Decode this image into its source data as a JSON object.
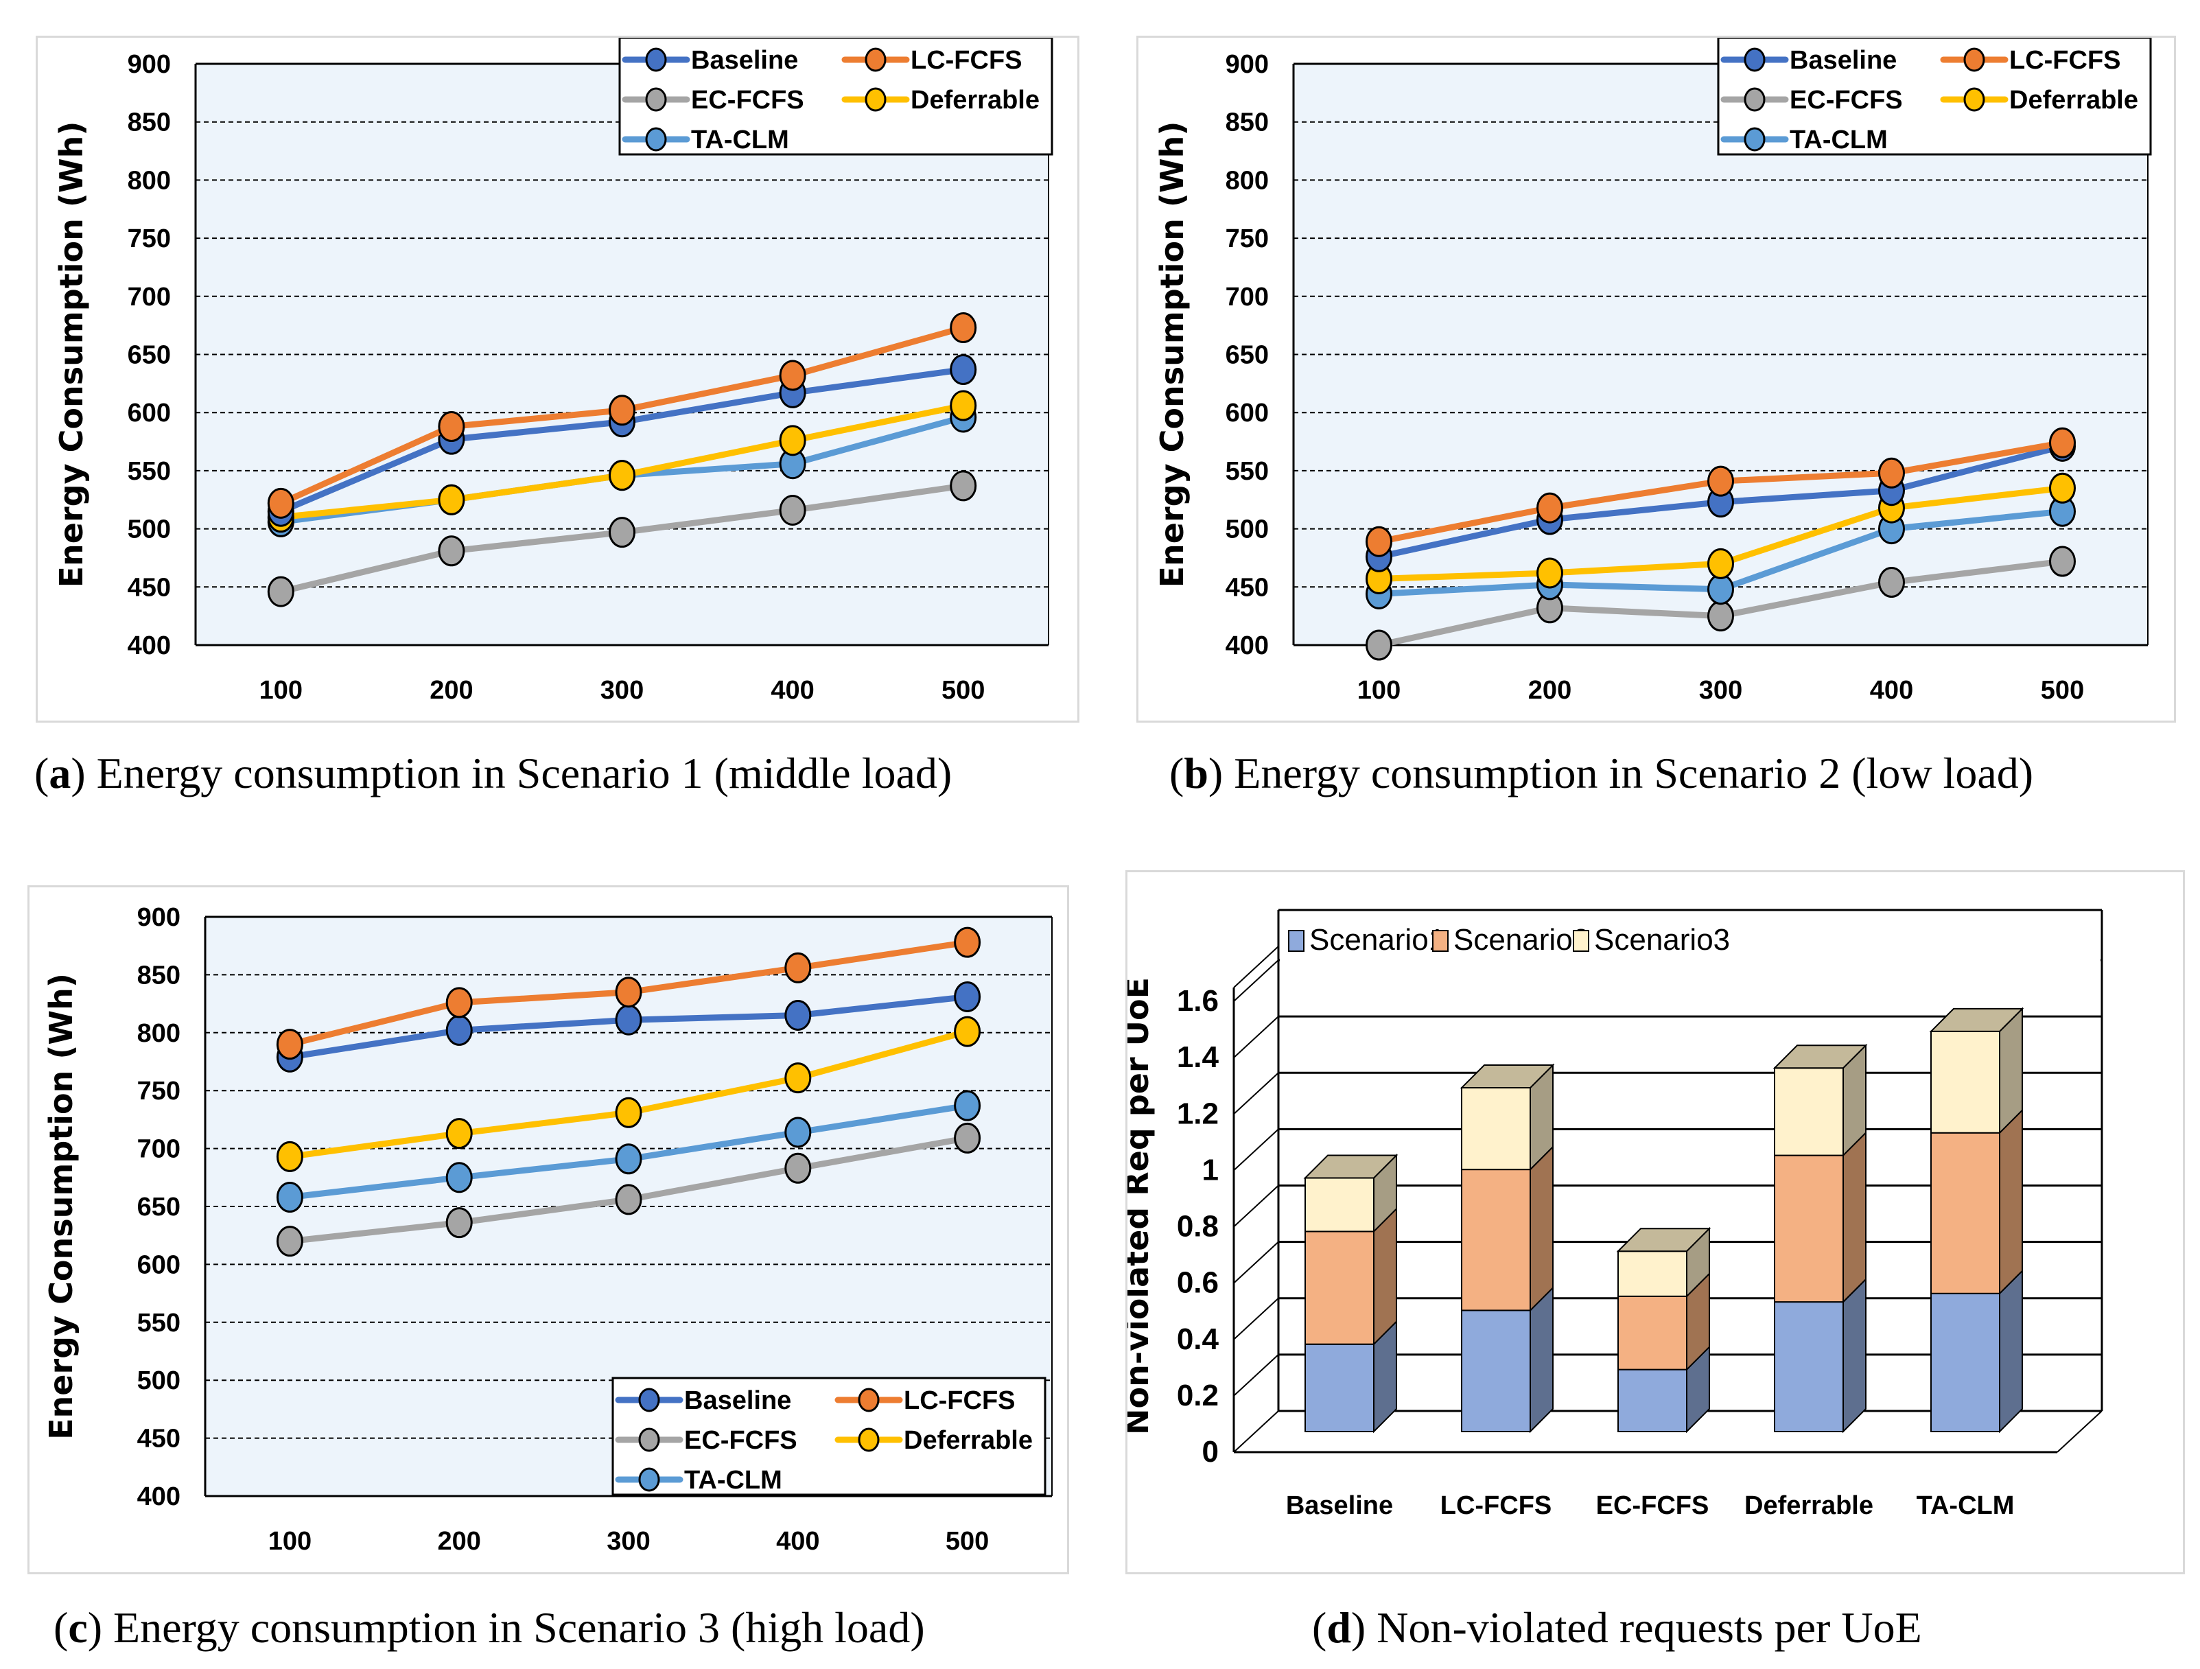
{
  "series_colors": {
    "Baseline": "#4472C4",
    "LC-FCFS": "#ED7D31",
    "EC-FCFS": "#A5A5A5",
    "Deferrable": "#FFC000",
    "TA-CLM": "#5B9BD5"
  },
  "plot_background": "#EDF4FB",
  "captions": {
    "a": {
      "letter": "a",
      "text": " Energy consumption in Scenario 1 (middle load)"
    },
    "b": {
      "letter": "b",
      "text": " Energy consumption in Scenario 2 (low load)"
    },
    "c": {
      "letter": "c",
      "text": " Energy consumption in Scenario 3 (high load)"
    },
    "d": {
      "letter": "d",
      "text": " Non-violated requests per UoE"
    }
  },
  "chart_data": [
    {
      "id": "a",
      "type": "line",
      "title": "Energy consumption in Scenario 1 (middle load)",
      "xlabel": "",
      "ylabel": "Energy Consumption (Wh)",
      "categories": [
        "100",
        "200",
        "300",
        "400",
        "500"
      ],
      "ylim": [
        400,
        900
      ],
      "yticks": [
        400,
        450,
        500,
        550,
        600,
        650,
        700,
        750,
        800,
        850,
        900
      ],
      "grid": true,
      "legend_position": "top-right",
      "series": [
        {
          "name": "Baseline",
          "values": [
            515,
            577,
            592,
            617,
            637
          ]
        },
        {
          "name": "LC-FCFS",
          "values": [
            522,
            588,
            602,
            632,
            673
          ]
        },
        {
          "name": "EC-FCFS",
          "values": [
            446,
            481,
            497,
            516,
            537
          ]
        },
        {
          "name": "Deferrable",
          "values": [
            510,
            525,
            546,
            576,
            606
          ]
        },
        {
          "name": "TA-CLM",
          "values": [
            506,
            525,
            546,
            556,
            596
          ]
        }
      ]
    },
    {
      "id": "b",
      "type": "line",
      "title": "Energy consumption in Scenario 2 (low load)",
      "xlabel": "",
      "ylabel": "Energy Consumption (Wh)",
      "categories": [
        "100",
        "200",
        "300",
        "400",
        "500"
      ],
      "ylim": [
        400,
        900
      ],
      "yticks": [
        400,
        450,
        500,
        550,
        600,
        650,
        700,
        750,
        800,
        850,
        900
      ],
      "grid": true,
      "legend_position": "top-right",
      "series": [
        {
          "name": "Baseline",
          "values": [
            476,
            508,
            523,
            533,
            571
          ]
        },
        {
          "name": "LC-FCFS",
          "values": [
            489,
            518,
            541,
            548,
            574
          ]
        },
        {
          "name": "EC-FCFS",
          "values": [
            400,
            432,
            425,
            454,
            472
          ]
        },
        {
          "name": "Deferrable",
          "values": [
            457,
            462,
            470,
            518,
            535
          ]
        },
        {
          "name": "TA-CLM",
          "values": [
            444,
            452,
            448,
            500,
            515
          ]
        }
      ]
    },
    {
      "id": "c",
      "type": "line",
      "title": "Energy consumption in Scenario 3 (high load)",
      "xlabel": "",
      "ylabel": "Energy Consumption (Wh)",
      "categories": [
        "100",
        "200",
        "300",
        "400",
        "500"
      ],
      "ylim": [
        400,
        900
      ],
      "yticks": [
        400,
        450,
        500,
        550,
        600,
        650,
        700,
        750,
        800,
        850,
        900
      ],
      "grid": true,
      "legend_position": "bottom-right",
      "series": [
        {
          "name": "Baseline",
          "values": [
            779,
            802,
            811,
            815,
            831
          ]
        },
        {
          "name": "LC-FCFS",
          "values": [
            790,
            826,
            835,
            856,
            878
          ]
        },
        {
          "name": "EC-FCFS",
          "values": [
            620,
            636,
            656,
            683,
            709
          ]
        },
        {
          "name": "Deferrable",
          "values": [
            693,
            713,
            731,
            761,
            801
          ]
        },
        {
          "name": "TA-CLM",
          "values": [
            658,
            675,
            691,
            714,
            737
          ]
        }
      ]
    },
    {
      "id": "d",
      "type": "bar",
      "stacked": true,
      "style": "3d",
      "title": "Non-violated requests per UoE",
      "xlabel": "",
      "ylabel": "Non-violated Req per UoE",
      "categories": [
        "Baseline",
        "LC-FCFS",
        "EC-FCFS",
        "Deferrable",
        "TA-CLM"
      ],
      "ylim": [
        0,
        1.6
      ],
      "yticks": [
        "0",
        "0.2",
        "0.4",
        "0.6",
        "0.8",
        "1",
        "1.2",
        "1.4",
        "1.6"
      ],
      "grid": true,
      "legend_position": "top",
      "series": [
        {
          "name": "Scenario1",
          "color": "#8FAADC",
          "values": [
            0.31,
            0.43,
            0.22,
            0.46,
            0.49
          ]
        },
        {
          "name": "Scenario2",
          "color": "#F4B183",
          "values": [
            0.4,
            0.5,
            0.26,
            0.52,
            0.57
          ]
        },
        {
          "name": "Scenario3",
          "color": "#FFF2CC",
          "values": [
            0.19,
            0.29,
            0.16,
            0.31,
            0.36
          ]
        }
      ]
    }
  ]
}
